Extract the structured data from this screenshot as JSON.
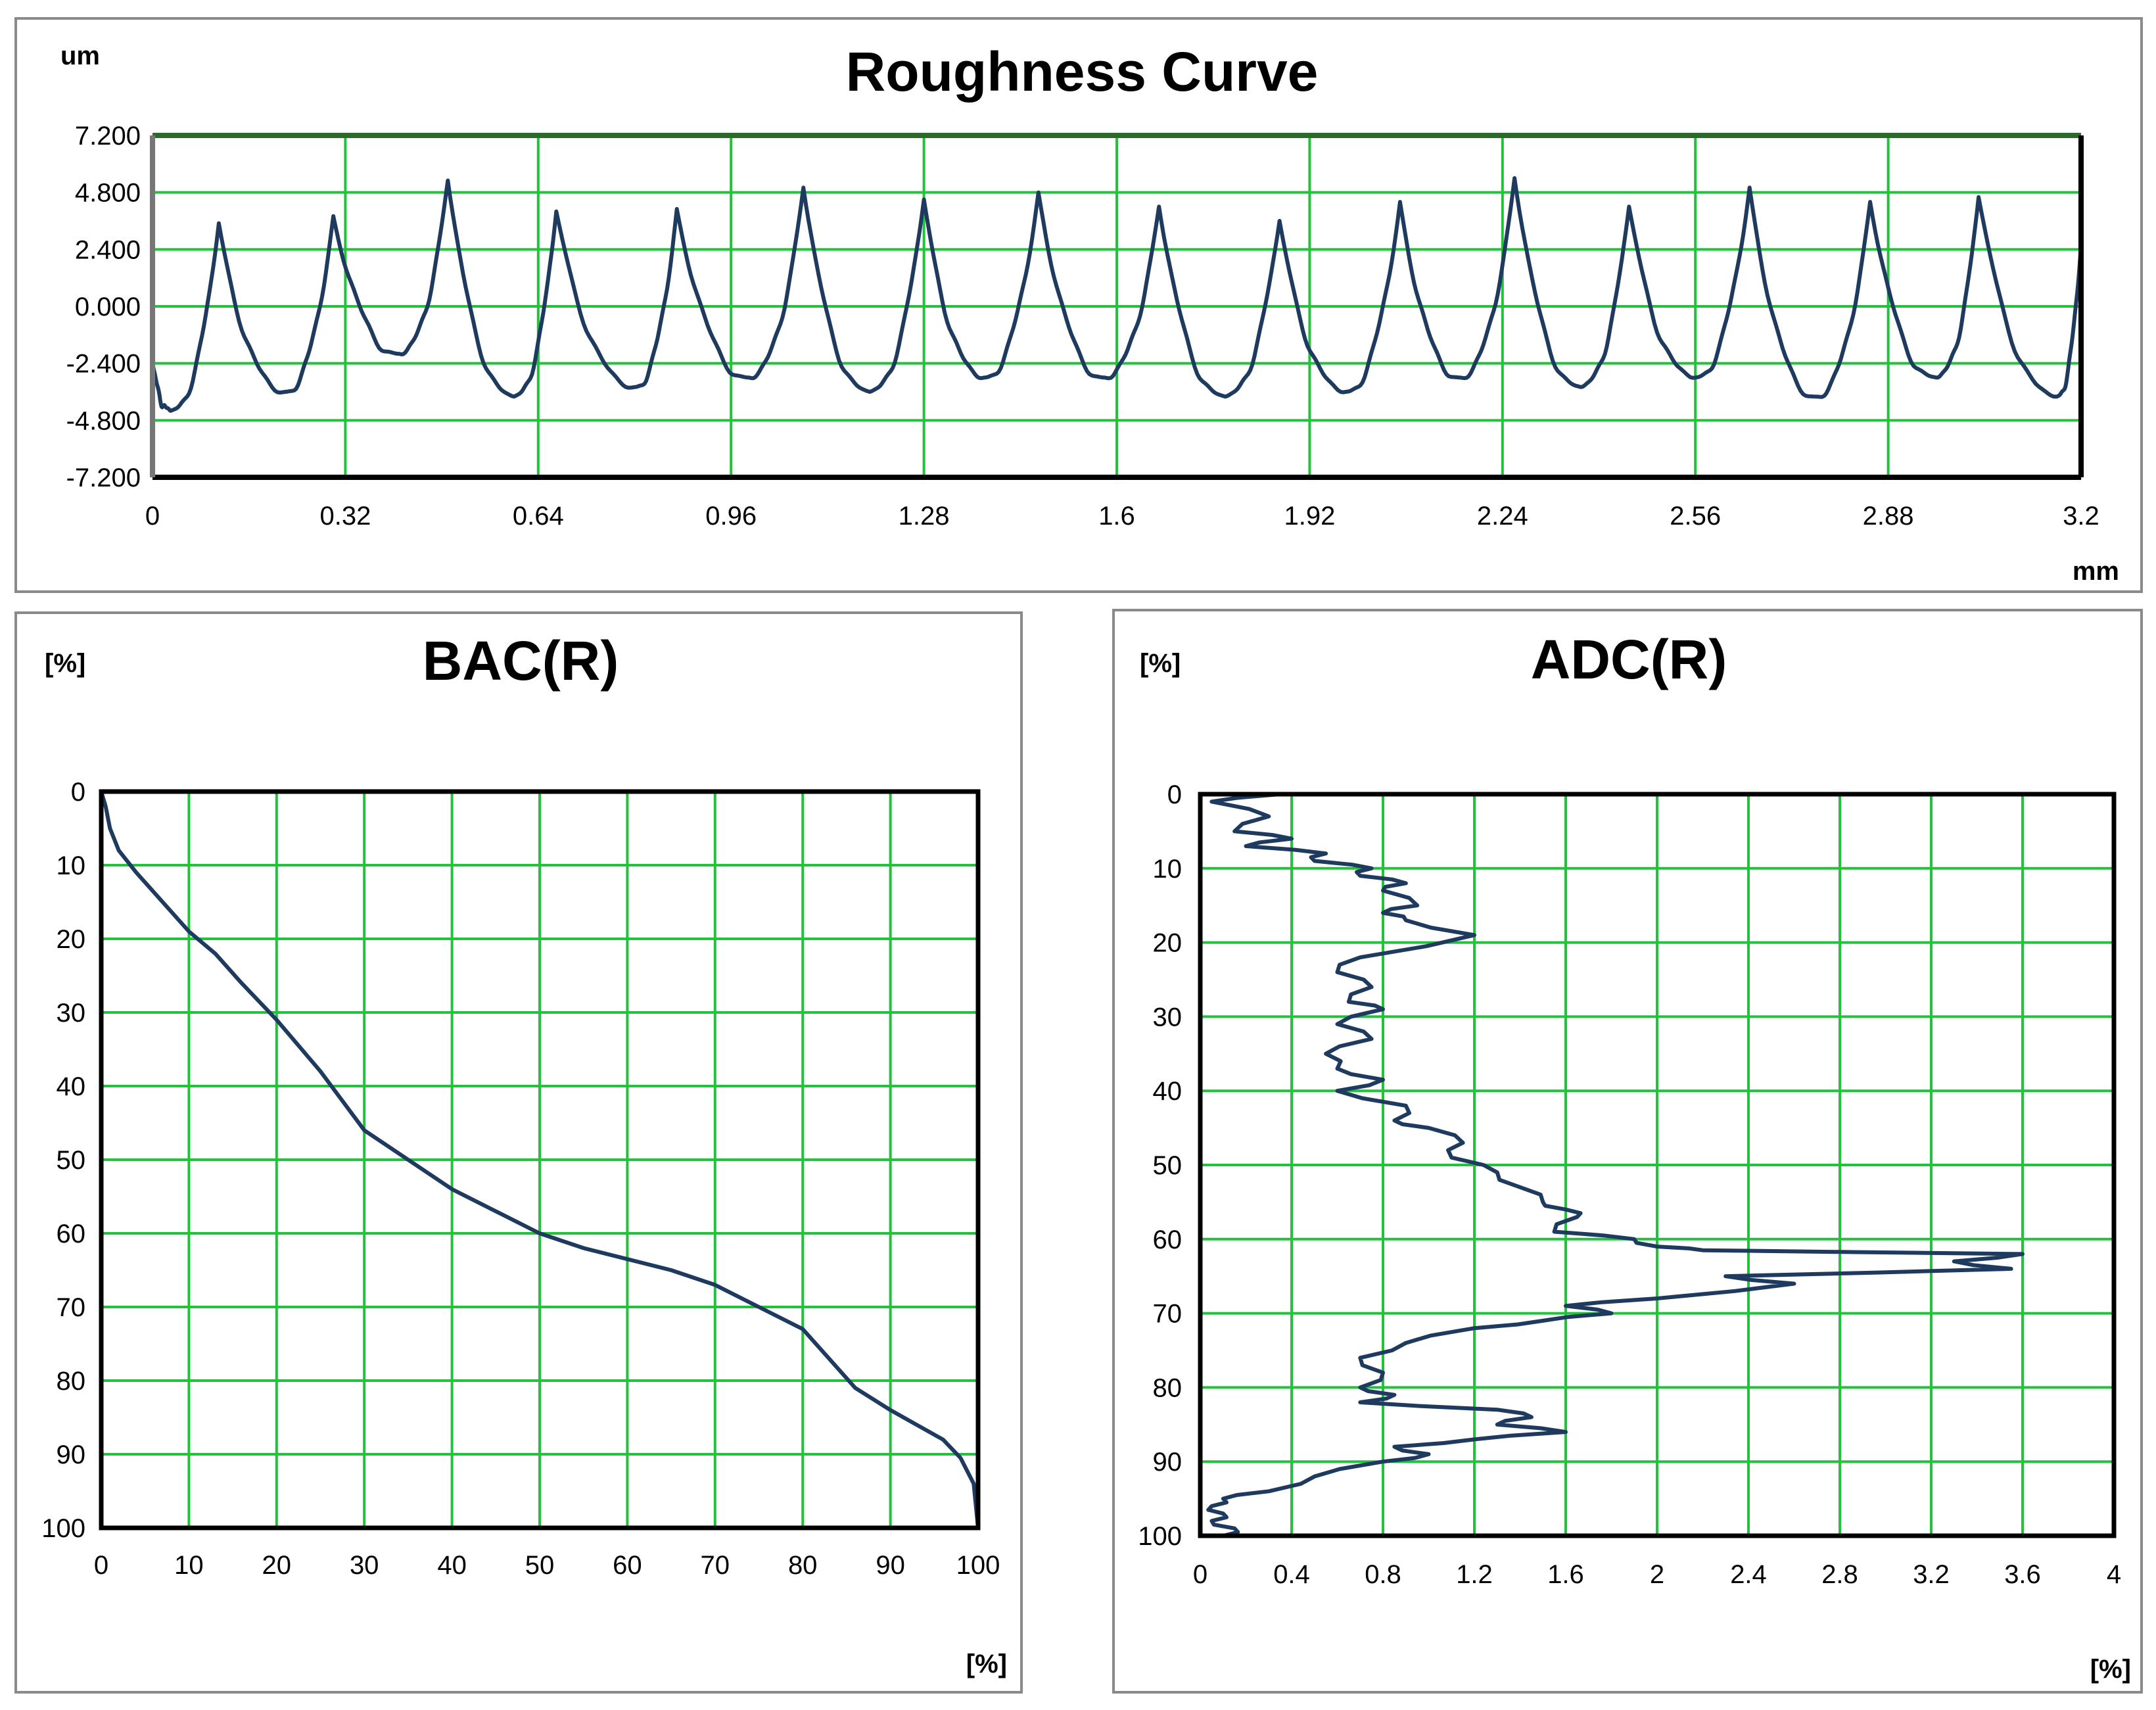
{
  "colors": {
    "grid": "#22c23a",
    "line": "#1f3a5f",
    "frame": "#000000",
    "border": "#8a8a8a",
    "text": "#000000"
  },
  "chart_data": [
    {
      "type": "line",
      "title": "Roughness Curve",
      "ylabel": "um",
      "xlabel": "mm",
      "xlim": [
        0,
        3.2
      ],
      "ylim": [
        -7.2,
        7.2
      ],
      "xticks": [
        "0",
        "0.32",
        "0.64",
        "0.96",
        "1.28",
        "1.6",
        "1.92",
        "2.24",
        "2.56",
        "2.88",
        "3.2"
      ],
      "yticks": [
        "7.200",
        "4.800",
        "2.400",
        "0.000",
        "-2.400",
        "-4.800",
        "-7.200"
      ],
      "grid": true,
      "series": [
        {
          "name": "Roughness",
          "peaks": [
            [
              0.11,
              3.5
            ],
            [
              0.3,
              3.8
            ],
            [
              0.49,
              5.3
            ],
            [
              0.67,
              4.0
            ],
            [
              0.87,
              4.1
            ],
            [
              1.08,
              5.0
            ],
            [
              1.28,
              4.5
            ],
            [
              1.47,
              4.8
            ],
            [
              1.67,
              4.2
            ],
            [
              1.87,
              3.6
            ],
            [
              2.07,
              4.4
            ],
            [
              2.26,
              5.4
            ],
            [
              2.45,
              4.2
            ],
            [
              2.65,
              5.0
            ],
            [
              2.85,
              4.4
            ],
            [
              3.03,
              4.6
            ]
          ],
          "valleys": [
            [
              0.03,
              -4.4
            ],
            [
              0.22,
              -3.6
            ],
            [
              0.41,
              -2.0
            ],
            [
              0.6,
              -3.8
            ],
            [
              0.8,
              -3.4
            ],
            [
              0.99,
              -3.0
            ],
            [
              1.19,
              -3.6
            ],
            [
              1.38,
              -3.0
            ],
            [
              1.58,
              -3.0
            ],
            [
              1.78,
              -3.8
            ],
            [
              1.98,
              -3.6
            ],
            [
              2.17,
              -3.0
            ],
            [
              2.37,
              -3.4
            ],
            [
              2.56,
              -3.0
            ],
            [
              2.76,
              -3.8
            ],
            [
              2.96,
              -3.0
            ],
            [
              3.16,
              -3.8
            ]
          ],
          "end": [
            [
              0,
              -2.4
            ],
            [
              3.2,
              2.6
            ]
          ]
        }
      ]
    },
    {
      "type": "line",
      "title": "BAC(R)",
      "ylabel": "[%]",
      "xlabel": "[%]",
      "xlim": [
        0,
        100
      ],
      "ylim": [
        0,
        100
      ],
      "xticks": [
        "0",
        "10",
        "20",
        "30",
        "40",
        "50",
        "60",
        "70",
        "80",
        "90",
        "100"
      ],
      "yticks": [
        "0",
        "10",
        "20",
        "30",
        "40",
        "50",
        "60",
        "70",
        "80",
        "90",
        "100"
      ],
      "grid": true,
      "series": [
        {
          "name": "BAC",
          "x": [
            0,
            0.5,
            1,
            2,
            4,
            7,
            10,
            13,
            16,
            20,
            25,
            30,
            35,
            40,
            45,
            50,
            55,
            60,
            65,
            70,
            75,
            80,
            83,
            86,
            90,
            93,
            96,
            98,
            99.5,
            100
          ],
          "y": [
            0,
            2,
            5,
            8,
            11,
            15,
            19,
            22,
            26,
            31,
            38,
            46,
            50,
            54,
            57,
            60,
            62,
            63.5,
            65,
            67,
            70,
            73,
            77,
            81,
            84,
            86,
            88,
            90.5,
            94,
            100
          ]
        }
      ]
    },
    {
      "type": "line",
      "title": "ADC(R)",
      "ylabel": "[%]",
      "xlabel": "[%]",
      "xlim": [
        0,
        4
      ],
      "ylim": [
        0,
        100
      ],
      "xticks": [
        "0",
        "0.4",
        "0.8",
        "1.2",
        "1.6",
        "2",
        "2.4",
        "2.8",
        "3.2",
        "3.6",
        "4"
      ],
      "yticks": [
        "0",
        "10",
        "20",
        "30",
        "40",
        "50",
        "60",
        "70",
        "80",
        "90",
        "100"
      ],
      "grid": true,
      "series": [
        {
          "name": "ADC",
          "x": [
            0.35,
            0.05,
            0.3,
            0.15,
            0.4,
            0.2,
            0.55,
            0.5,
            0.75,
            0.7,
            0.9,
            0.8,
            0.95,
            0.8,
            0.9,
            1.2,
            0.7,
            0.6,
            0.75,
            0.65,
            0.8,
            0.6,
            0.75,
            0.55,
            0.6,
            0.8,
            0.6,
            0.9,
            0.85,
            1.0,
            1.15,
            1.1,
            1.3,
            1.4,
            1.5,
            1.6,
            1.65,
            1.55,
            1.9,
            2.0,
            2.2,
            3.6,
            3.3,
            3.55,
            2.3,
            2.6,
            2.0,
            1.6,
            1.8,
            1.5,
            1.2,
            0.9,
            0.7,
            0.8,
            0.7,
            0.85,
            0.7,
            1.3,
            1.45,
            1.3,
            1.6,
            1.2,
            0.85,
            1.0,
            0.8,
            0.5,
            0.3,
            0.1,
            0.05,
            0.1,
            0.05,
            0.15,
            0.1
          ],
          "y": [
            0,
            1,
            3,
            5,
            6,
            7,
            8,
            9,
            10,
            11,
            12,
            13,
            15,
            16,
            17,
            19,
            22,
            24,
            26,
            28,
            29,
            31,
            33,
            35,
            37,
            38.5,
            40,
            42,
            44,
            45,
            47,
            49,
            51,
            53,
            55,
            56,
            57,
            59,
            60,
            61,
            61.5,
            62,
            63,
            64,
            65,
            66,
            68,
            69,
            70,
            71,
            72,
            74,
            76,
            78,
            80,
            81,
            82,
            83,
            84,
            85,
            86,
            87,
            88,
            89,
            90,
            92,
            94,
            95,
            96,
            97,
            98,
            99,
            100
          ]
        }
      ]
    }
  ]
}
